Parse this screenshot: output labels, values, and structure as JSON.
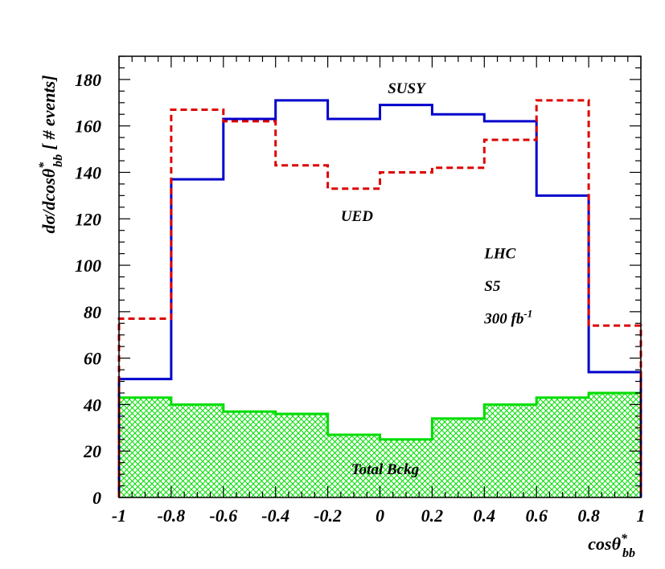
{
  "chart_data": {
    "type": "histogram",
    "xlabel": {
      "main": "cosθ",
      "sup": "*",
      "sub": "bb"
    },
    "ylabel": {
      "main": "dσ/dcosθ",
      "sup": "*",
      "sub": "bb",
      "tail": " [ # events]"
    },
    "xlim": [
      -1,
      1
    ],
    "ylim": [
      0,
      190
    ],
    "xticks": [
      -1,
      -0.8,
      -0.6,
      -0.4,
      -0.2,
      0,
      0.2,
      0.4,
      0.6,
      0.8,
      1
    ],
    "xtick_labels": [
      "-1",
      "-0.8",
      "-0.6",
      "-0.4",
      "-0.2",
      "0",
      "0.2",
      "0.4",
      "0.6",
      "0.8",
      "1"
    ],
    "yticks": [
      0,
      20,
      40,
      60,
      80,
      100,
      120,
      140,
      160,
      180
    ],
    "ytick_labels": [
      "0",
      "20",
      "40",
      "60",
      "80",
      "100",
      "120",
      "140",
      "160",
      "180"
    ],
    "bin_edges": [
      -1,
      -0.8,
      -0.6,
      -0.4,
      -0.2,
      0,
      0.2,
      0.4,
      0.6,
      0.8,
      1
    ],
    "fine_bin_edges": [
      -1,
      -0.8,
      -0.6,
      -0.4,
      -0.2,
      0,
      0.2,
      0.4,
      0.6,
      0.8,
      1
    ],
    "series": [
      {
        "name": "SUSY",
        "style": "solid",
        "color": "#0000cc",
        "edges": [
          -1,
          -0.8,
          -0.6,
          -0.4,
          -0.2,
          0,
          0.2,
          0.4,
          0.6,
          0.8,
          1
        ],
        "values": [
          51,
          137,
          163,
          171,
          163,
          169,
          165,
          162,
          130,
          54
        ]
      },
      {
        "name": "UED",
        "style": "dashed",
        "color": "#dd0000",
        "edges": [
          -1,
          -0.8,
          -0.6,
          -0.4,
          -0.2,
          0,
          0.2,
          0.4,
          0.6,
          0.8,
          1
        ],
        "values": [
          77,
          167,
          162,
          143,
          133,
          140,
          142,
          154,
          171,
          74
        ]
      },
      {
        "name": "Total Bckg",
        "style": "hatched",
        "color": "#00dd00",
        "edges": [
          -1,
          -0.8,
          -0.6,
          -0.4,
          -0.2,
          0,
          0.2,
          0.4,
          0.6,
          0.8,
          1
        ],
        "values": [
          43,
          40,
          37,
          36,
          27,
          25,
          34,
          40,
          43,
          45
        ]
      }
    ],
    "annotations": [
      {
        "text": "SUSY",
        "x": 0.03,
        "y": 174,
        "anchor": "start"
      },
      {
        "text": "UED",
        "x": -0.15,
        "y": 119,
        "anchor": "start"
      },
      {
        "text": "LHC",
        "x": 0.4,
        "y": 103,
        "anchor": "start"
      },
      {
        "text": "S5",
        "x": 0.4,
        "y": 89,
        "anchor": "start"
      },
      {
        "text": "300 fb",
        "sup": "-1",
        "x": 0.4,
        "y": 75,
        "anchor": "start"
      },
      {
        "text": "Total Bckg",
        "x": -0.11,
        "y": 10,
        "anchor": "start"
      }
    ],
    "grid": false,
    "legend": "none"
  }
}
